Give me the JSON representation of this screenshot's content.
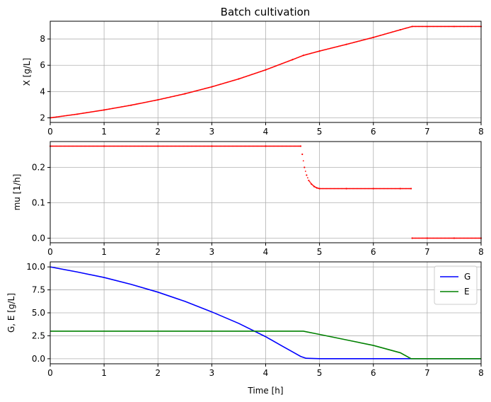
{
  "figure": {
    "title": "Batch cultivation"
  },
  "chart_data": [
    {
      "type": "scatter",
      "title": "Batch cultivation",
      "xlabel": "",
      "ylabel": "X [g/L]",
      "xlim": [
        0,
        8
      ],
      "ylim": [
        1.65,
        9.35
      ],
      "xticks": [
        0,
        1,
        2,
        3,
        4,
        5,
        6,
        7,
        8
      ],
      "yticks": [
        2,
        4,
        6,
        8
      ],
      "ytick_labels": [
        "2",
        "4",
        "6",
        "8"
      ],
      "grid": true,
      "series": [
        {
          "color": "#ff0000",
          "x": [
            0,
            0.5,
            1,
            1.5,
            2,
            2.5,
            3,
            3.5,
            4,
            4.5,
            4.7,
            5,
            5.5,
            6,
            6.5,
            6.72,
            7,
            7.5,
            8
          ],
          "y": [
            2.0,
            2.28,
            2.6,
            2.96,
            3.37,
            3.83,
            4.36,
            4.96,
            5.65,
            6.43,
            6.75,
            7.08,
            7.59,
            8.12,
            8.7,
            8.95,
            8.95,
            8.95,
            8.95
          ]
        }
      ]
    },
    {
      "type": "scatter",
      "title": "",
      "xlabel": "",
      "ylabel": "mu [1/h]",
      "xlim": [
        0,
        8
      ],
      "ylim": [
        -0.013,
        0.273
      ],
      "xticks": [
        0,
        1,
        2,
        3,
        4,
        5,
        6,
        7,
        8
      ],
      "yticks": [
        0,
        0.1,
        0.2
      ],
      "ytick_labels": [
        "0.0",
        "0.1",
        "0.2"
      ],
      "grid": true,
      "series": [
        {
          "color": "#ff0000",
          "x": [
            0,
            1,
            2,
            3,
            4,
            4.65,
            4.68,
            4.72,
            4.76,
            4.8,
            4.85,
            4.9,
            4.95,
            5,
            5.5,
            6,
            6.5,
            6.7,
            6.72,
            7,
            7.5,
            8
          ],
          "y": [
            0.26,
            0.26,
            0.26,
            0.26,
            0.26,
            0.26,
            0.237,
            0.2,
            0.178,
            0.163,
            0.153,
            0.146,
            0.142,
            0.14,
            0.14,
            0.14,
            0.14,
            0.14,
            0.0,
            0.0,
            0.0,
            0.0
          ]
        }
      ]
    },
    {
      "type": "line",
      "title": "",
      "xlabel": "Time [h]",
      "ylabel": "G, E [g/L]",
      "xlim": [
        0,
        8
      ],
      "ylim": [
        -0.55,
        10.55
      ],
      "xticks": [
        0,
        1,
        2,
        3,
        4,
        5,
        6,
        7,
        8
      ],
      "yticks": [
        0,
        2.5,
        5,
        7.5,
        10
      ],
      "ytick_labels": [
        "0.0",
        "2.5",
        "5.0",
        "7.5",
        "10.0"
      ],
      "grid": true,
      "legend": "top-right",
      "series": [
        {
          "name": "G",
          "color": "#0000ff",
          "x": [
            0,
            0.5,
            1,
            1.5,
            2,
            2.5,
            3,
            3.5,
            4,
            4.3,
            4.5,
            4.65,
            4.75,
            5,
            5.5,
            6,
            6.5,
            6.7,
            7,
            7.5,
            8
          ],
          "y": [
            10.0,
            9.45,
            8.85,
            8.1,
            7.25,
            6.25,
            5.1,
            3.85,
            2.4,
            1.4,
            0.75,
            0.25,
            0.05,
            0.0,
            0.0,
            0.0,
            0.0,
            0.0,
            0.0,
            0.0,
            0.0
          ]
        },
        {
          "name": "E",
          "color": "#008000",
          "x": [
            0,
            1,
            2,
            3,
            4,
            4.7,
            5,
            5.5,
            6,
            6.5,
            6.7,
            7,
            7.5,
            8
          ],
          "y": [
            3.0,
            3.0,
            3.0,
            3.0,
            3.0,
            3.0,
            2.65,
            2.05,
            1.45,
            0.65,
            0.0,
            0.0,
            0.0,
            0.0
          ]
        }
      ]
    }
  ],
  "xtick_labels": [
    "0",
    "1",
    "2",
    "3",
    "4",
    "5",
    "6",
    "7",
    "8"
  ]
}
